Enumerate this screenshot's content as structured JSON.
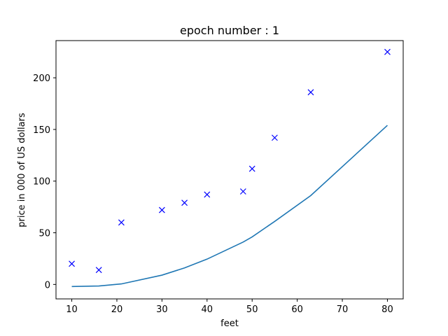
{
  "chart_data": {
    "type": "scatter",
    "title": "epoch number : 1",
    "xlabel": "feet",
    "ylabel": "price in 000 of US dollars",
    "xlim": [
      6.5,
      83.5
    ],
    "ylim": [
      -14,
      236
    ],
    "x_ticks": [
      10,
      20,
      30,
      40,
      50,
      60,
      70,
      80
    ],
    "y_ticks": [
      0,
      50,
      100,
      150,
      200
    ],
    "grid": false,
    "legend": "none",
    "series": [
      {
        "kind": "scatter",
        "marker": "x",
        "color": "#0000ff",
        "points": [
          {
            "x": 10,
            "y": 20
          },
          {
            "x": 16,
            "y": 14
          },
          {
            "x": 21,
            "y": 60
          },
          {
            "x": 30,
            "y": 72
          },
          {
            "x": 35,
            "y": 79
          },
          {
            "x": 40,
            "y": 87
          },
          {
            "x": 48,
            "y": 90
          },
          {
            "x": 50,
            "y": 112
          },
          {
            "x": 55,
            "y": 142
          },
          {
            "x": 63,
            "y": 186
          },
          {
            "x": 80,
            "y": 225
          }
        ]
      },
      {
        "kind": "line",
        "color": "#1f77b4",
        "points": [
          {
            "x": 10,
            "y": -2
          },
          {
            "x": 16,
            "y": -1.5
          },
          {
            "x": 21,
            "y": 0.5
          },
          {
            "x": 30,
            "y": 9
          },
          {
            "x": 35,
            "y": 16
          },
          {
            "x": 40,
            "y": 24.5
          },
          {
            "x": 48,
            "y": 41
          },
          {
            "x": 50,
            "y": 46
          },
          {
            "x": 55,
            "y": 61
          },
          {
            "x": 63,
            "y": 86
          },
          {
            "x": 80,
            "y": 154
          }
        ]
      }
    ]
  }
}
